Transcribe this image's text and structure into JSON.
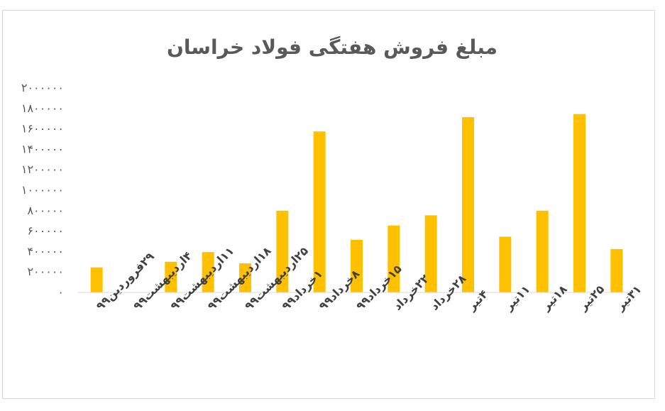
{
  "chart_data": {
    "type": "bar",
    "title": "مبلغ فروش هفتگی فولاد خراسان",
    "xlabel": "",
    "ylabel": "",
    "categories": [
      "۲۹فروردین۹۹",
      "۴اردیبهشت۹۹",
      "۱۱اردیبهشت۹۹",
      "۱۸اردیبهشت۹۹",
      "۲۵اردیبهشت۹۹",
      "۱خرداد۹۹",
      "۸خرداد۹۹",
      "۱۵خرداد۹۹",
      "۲۲خرداد",
      "۲۸خرداد",
      "۴تیر",
      "۱۱تیر",
      "۱۸تیر",
      "۲۵تیر",
      "۳۱تیر"
    ],
    "values": [
      245000,
      0,
      300000,
      395000,
      285000,
      800000,
      1575000,
      515000,
      655000,
      755000,
      1715000,
      545000,
      800000,
      1745000,
      425000
    ],
    "ylim": [
      0,
      2000000
    ],
    "yticks": [
      0,
      200000,
      400000,
      600000,
      800000,
      1000000,
      1200000,
      1400000,
      1600000,
      1800000,
      2000000
    ],
    "ytick_labels": [
      "۰",
      "۲۰۰۰۰۰",
      "۴۰۰۰۰۰",
      "۶۰۰۰۰۰",
      "۸۰۰۰۰۰",
      "۱۰۰۰۰۰۰",
      "۱۲۰۰۰۰۰",
      "۱۴۰۰۰۰۰",
      "۱۶۰۰۰۰۰",
      "۱۸۰۰۰۰۰",
      "۲۰۰۰۰۰۰"
    ],
    "grid": false,
    "legend": "none",
    "bar_color": "#FFC000"
  }
}
